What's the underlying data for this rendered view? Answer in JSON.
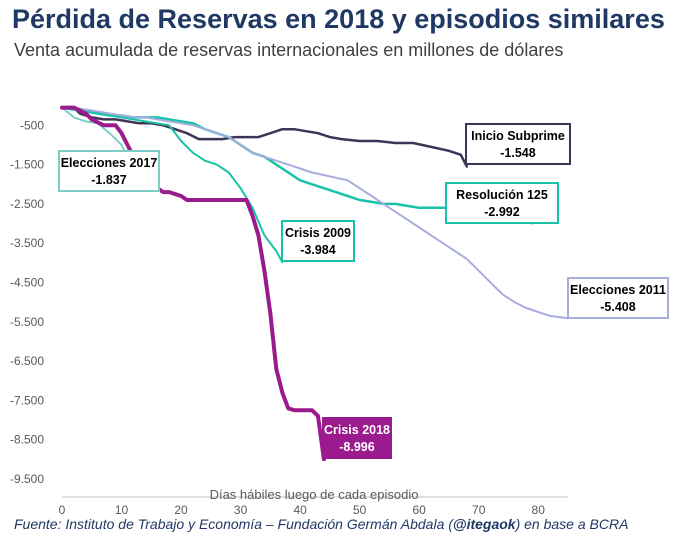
{
  "title": "Pérdida de Reservas en 2018  y episodios similares",
  "subtitle": "Venta acumulada de reservas internacionales en millones de dólares",
  "source": {
    "prefix": "Fuente: Instituto de Trabajo y Economía – Fundación Germán Abdala (",
    "handle": "@itegaok",
    "suffix": ") en base a BCRA"
  },
  "chart_data": {
    "type": "line",
    "title": "Pérdida de Reservas en 2018  y episodios similares",
    "subtitle": "Venta acumulada de reservas internacionales en millones de dólares",
    "xlabel": "Días hábiles luego de cada episodio",
    "ylabel": "",
    "xlim": [
      0,
      85
    ],
    "ylim": [
      -9500,
      500
    ],
    "x_ticks": [
      0,
      10,
      20,
      30,
      40,
      50,
      60,
      70,
      80
    ],
    "y_ticks": [
      -500,
      -1500,
      -2500,
      -3500,
      -4500,
      -5500,
      -6500,
      -7500,
      -8500,
      -9500
    ],
    "y_tick_labels": [
      "-500",
      "-1.500",
      "-2.500",
      "-3.500",
      "-4.500",
      "-5.500",
      "-6.500",
      "-7.500",
      "-8.500",
      "-9.500"
    ],
    "grid": false,
    "series": [
      {
        "name": "Inicio Subprime",
        "value_label": "-1.548",
        "color": "#3d3456",
        "width": 2.5,
        "x": [
          0,
          2,
          3,
          5,
          7,
          9,
          11,
          13,
          15,
          17,
          19,
          21,
          23,
          25,
          27,
          29,
          31,
          33,
          35,
          37,
          39,
          41,
          43,
          45,
          47,
          50,
          53,
          56,
          59,
          62,
          65,
          67,
          68
        ],
        "y": [
          -50,
          -50,
          -200,
          -300,
          -350,
          -350,
          -400,
          -450,
          -450,
          -500,
          -600,
          -700,
          -850,
          -850,
          -850,
          -800,
          -800,
          -800,
          -700,
          -600,
          -600,
          -650,
          -700,
          -800,
          -850,
          -900,
          -900,
          -950,
          -950,
          -1050,
          -1150,
          -1250,
          -1548
        ]
      },
      {
        "name": "Resolución 125",
        "value_label": "-2.992",
        "color": "#19c3a8",
        "width": 2.5,
        "x": [
          0,
          2,
          4,
          6,
          8,
          10,
          12,
          14,
          16,
          18,
          20,
          22,
          24,
          26,
          28,
          30,
          32,
          34,
          36,
          38,
          40,
          42,
          44,
          46,
          48,
          50,
          52,
          54,
          56,
          58,
          60,
          62,
          65,
          68,
          70,
          72,
          75,
          79
        ],
        "y": [
          -50,
          -100,
          -150,
          -200,
          -250,
          -250,
          -300,
          -300,
          -300,
          -350,
          -400,
          -450,
          -600,
          -700,
          -800,
          -1000,
          -1200,
          -1300,
          -1500,
          -1700,
          -1900,
          -2000,
          -2100,
          -2200,
          -2300,
          -2400,
          -2450,
          -2500,
          -2500,
          -2550,
          -2600,
          -2600,
          -2600,
          -2650,
          -2700,
          -2700,
          -2800,
          -2992
        ]
      },
      {
        "name": "Elecciones 2011",
        "value_label": "-5.408",
        "color": "#a8acde",
        "width": 2,
        "x": [
          0,
          2,
          4,
          6,
          8,
          10,
          12,
          14,
          16,
          18,
          20,
          22,
          24,
          26,
          28,
          30,
          32,
          34,
          36,
          38,
          40,
          42,
          45,
          48,
          50,
          52,
          54,
          56,
          58,
          60,
          62,
          64,
          66,
          68,
          70,
          72,
          74,
          76,
          78,
          80,
          82,
          85
        ],
        "y": [
          -50,
          -50,
          -100,
          -150,
          -200,
          -250,
          -300,
          -300,
          -350,
          -400,
          -450,
          -500,
          -600,
          -700,
          -800,
          -1000,
          -1200,
          -1300,
          -1400,
          -1500,
          -1600,
          -1700,
          -1800,
          -1900,
          -2100,
          -2300,
          -2500,
          -2700,
          -2900,
          -3100,
          -3300,
          -3500,
          -3700,
          -3900,
          -4200,
          -4500,
          -4800,
          -5000,
          -5150,
          -5250,
          -5350,
          -5408
        ]
      },
      {
        "name": "Crisis 2009",
        "value_label": "-3.984",
        "color": "#19c3a8",
        "width": 2,
        "x": [
          0,
          2,
          4,
          6,
          8,
          10,
          12,
          14,
          16,
          18,
          20,
          22,
          24,
          26,
          28,
          30,
          32,
          34,
          36,
          37
        ],
        "y": [
          -50,
          -100,
          -150,
          -200,
          -250,
          -300,
          -350,
          -400,
          -450,
          -500,
          -900,
          -1200,
          -1400,
          -1500,
          -1700,
          -2100,
          -2600,
          -3300,
          -3700,
          -3984
        ]
      },
      {
        "name": "Elecciones 2017",
        "value_label": "-1.837",
        "color": "#7dcfc6",
        "width": 2,
        "x": [
          0,
          2,
          4,
          6,
          8,
          10,
          11,
          12,
          13
        ],
        "y": [
          -50,
          -300,
          -400,
          -450,
          -700,
          -1000,
          -1300,
          -1600,
          -1837
        ]
      },
      {
        "name": "Crisis 2018",
        "value_label": "-8.996",
        "color": "#9b1b8f",
        "width": 4,
        "x": [
          0,
          2,
          4,
          5,
          7,
          9,
          10,
          11,
          12,
          13,
          14,
          15,
          16,
          17,
          18,
          20,
          21,
          22,
          24,
          26,
          28,
          30,
          31,
          32,
          33,
          34,
          35,
          36,
          37,
          38,
          39,
          40,
          41,
          42,
          43,
          44
        ],
        "y": [
          -50,
          -50,
          -200,
          -350,
          -500,
          -500,
          -700,
          -1000,
          -1300,
          -1500,
          -1700,
          -1900,
          -2100,
          -2200,
          -2200,
          -2300,
          -2400,
          -2400,
          -2400,
          -2400,
          -2400,
          -2400,
          -2400,
          -2800,
          -3300,
          -4200,
          -5300,
          -6700,
          -7300,
          -7700,
          -7750,
          -7750,
          -7750,
          -7750,
          -7900,
          -8996
        ]
      }
    ]
  }
}
